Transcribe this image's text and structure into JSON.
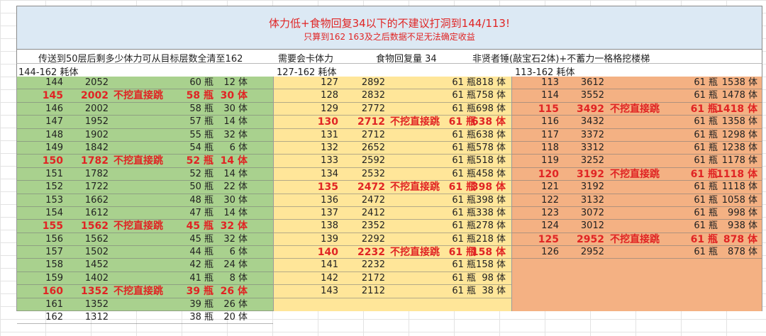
{
  "banner": {
    "title": "体力低+食物回复34以下的不建议打洞到144/113!",
    "subtitle": "只算到162  163及之后数据不足无法确定收益"
  },
  "header": {
    "left": "传送到50层后剩多少体力可从目标层数全清至162",
    "mid1": "需要会卡体力",
    "mid2": "食物回复量 34",
    "right": "非贤者锤(敲宝石2体)+不蓄力一格格挖楼梯"
  },
  "subheader": {
    "green": "144-162   耗体",
    "yellow": "127-162   耗体",
    "orange": "113-162   耗体"
  },
  "tables": {
    "green": [
      {
        "floor": "144",
        "stamina": "2052",
        "note": "",
        "bottles": "60 瓶",
        "cost": "12 体",
        "hl": false
      },
      {
        "floor": "145",
        "stamina": "2002",
        "note": "不挖直接跳",
        "bottles": "58 瓶",
        "cost": "30 体",
        "hl": true
      },
      {
        "floor": "146",
        "stamina": "2002",
        "note": "",
        "bottles": "58 瓶",
        "cost": "30 体",
        "hl": false
      },
      {
        "floor": "147",
        "stamina": "1952",
        "note": "",
        "bottles": "57 瓶",
        "cost": "14 体",
        "hl": false
      },
      {
        "floor": "148",
        "stamina": "1902",
        "note": "",
        "bottles": "55 瓶",
        "cost": "32 体",
        "hl": false
      },
      {
        "floor": "149",
        "stamina": "1842",
        "note": "",
        "bottles": "54 瓶",
        "cost": "6 体",
        "hl": false
      },
      {
        "floor": "150",
        "stamina": "1782",
        "note": "不挖直接跳",
        "bottles": "52 瓶",
        "cost": "14 体",
        "hl": true
      },
      {
        "floor": "151",
        "stamina": "1782",
        "note": "",
        "bottles": "52 瓶",
        "cost": "14 体",
        "hl": false
      },
      {
        "floor": "152",
        "stamina": "1722",
        "note": "",
        "bottles": "50 瓶",
        "cost": "22 体",
        "hl": false
      },
      {
        "floor": "153",
        "stamina": "1662",
        "note": "",
        "bottles": "48 瓶",
        "cost": "30 体",
        "hl": false
      },
      {
        "floor": "154",
        "stamina": "1612",
        "note": "",
        "bottles": "47 瓶",
        "cost": "14 体",
        "hl": false
      },
      {
        "floor": "155",
        "stamina": "1562",
        "note": "不挖直接跳",
        "bottles": "45 瓶",
        "cost": "32 体",
        "hl": true
      },
      {
        "floor": "156",
        "stamina": "1562",
        "note": "",
        "bottles": "45 瓶",
        "cost": "32 体",
        "hl": false
      },
      {
        "floor": "157",
        "stamina": "1502",
        "note": "",
        "bottles": "44 瓶",
        "cost": "6 体",
        "hl": false
      },
      {
        "floor": "158",
        "stamina": "1452",
        "note": "",
        "bottles": "42 瓶",
        "cost": "24 体",
        "hl": false
      },
      {
        "floor": "159",
        "stamina": "1402",
        "note": "",
        "bottles": "41 瓶",
        "cost": "8 体",
        "hl": false
      },
      {
        "floor": "160",
        "stamina": "1352",
        "note": "不挖直接跳",
        "bottles": "39 瓶",
        "cost": "26 体",
        "hl": true
      },
      {
        "floor": "161",
        "stamina": "1352",
        "note": "",
        "bottles": "39 瓶",
        "cost": "26 体",
        "hl": false
      },
      {
        "floor": "162",
        "stamina": "1312",
        "note": "",
        "bottles": "38 瓶",
        "cost": "20 体",
        "hl": false
      }
    ],
    "yellow": [
      {
        "floor": "127",
        "stamina": "2892",
        "note": "",
        "bottles": "61 瓶",
        "cost": "818 体",
        "hl": false
      },
      {
        "floor": "128",
        "stamina": "2832",
        "note": "",
        "bottles": "61 瓶",
        "cost": "758 体",
        "hl": false
      },
      {
        "floor": "129",
        "stamina": "2772",
        "note": "",
        "bottles": "61 瓶",
        "cost": "698 体",
        "hl": false
      },
      {
        "floor": "130",
        "stamina": "2712",
        "note": "不挖直接跳",
        "bottles": "61 瓶",
        "cost": "638 体",
        "hl": true
      },
      {
        "floor": "131",
        "stamina": "2712",
        "note": "",
        "bottles": "61 瓶",
        "cost": "638 体",
        "hl": false
      },
      {
        "floor": "132",
        "stamina": "2652",
        "note": "",
        "bottles": "61 瓶",
        "cost": "578 体",
        "hl": false
      },
      {
        "floor": "133",
        "stamina": "2592",
        "note": "",
        "bottles": "61 瓶",
        "cost": "518 体",
        "hl": false
      },
      {
        "floor": "134",
        "stamina": "2532",
        "note": "",
        "bottles": "61 瓶",
        "cost": "458 体",
        "hl": false
      },
      {
        "floor": "135",
        "stamina": "2472",
        "note": "不挖直接跳",
        "bottles": "61 瓶",
        "cost": "398 体",
        "hl": true
      },
      {
        "floor": "136",
        "stamina": "2472",
        "note": "",
        "bottles": "61 瓶",
        "cost": "398 体",
        "hl": false
      },
      {
        "floor": "137",
        "stamina": "2412",
        "note": "",
        "bottles": "61 瓶",
        "cost": "338 体",
        "hl": false
      },
      {
        "floor": "138",
        "stamina": "2352",
        "note": "",
        "bottles": "61 瓶",
        "cost": "278 体",
        "hl": false
      },
      {
        "floor": "139",
        "stamina": "2292",
        "note": "",
        "bottles": "61 瓶",
        "cost": "218 体",
        "hl": false
      },
      {
        "floor": "140",
        "stamina": "2232",
        "note": "不挖直接跳",
        "bottles": "61 瓶",
        "cost": "158 体",
        "hl": true
      },
      {
        "floor": "141",
        "stamina": "2232",
        "note": "",
        "bottles": "61 瓶",
        "cost": "158 体",
        "hl": false
      },
      {
        "floor": "142",
        "stamina": "2172",
        "note": "",
        "bottles": "61 瓶",
        "cost": "98 体",
        "hl": false
      },
      {
        "floor": "143",
        "stamina": "2112",
        "note": "",
        "bottles": "61 瓶",
        "cost": "38 体",
        "hl": false
      }
    ],
    "orange": [
      {
        "floor": "113",
        "stamina": "3612",
        "note": "",
        "bottles": "61 瓶",
        "cost": "1538 体",
        "hl": false
      },
      {
        "floor": "114",
        "stamina": "3552",
        "note": "",
        "bottles": "61 瓶",
        "cost": "1478 体",
        "hl": false
      },
      {
        "floor": "115",
        "stamina": "3492",
        "note": "不挖直接跳",
        "bottles": "61 瓶",
        "cost": "1418 体",
        "hl": true
      },
      {
        "floor": "116",
        "stamina": "3432",
        "note": "",
        "bottles": "61 瓶",
        "cost": "1358 体",
        "hl": false
      },
      {
        "floor": "117",
        "stamina": "3372",
        "note": "",
        "bottles": "61 瓶",
        "cost": "1298 体",
        "hl": false
      },
      {
        "floor": "118",
        "stamina": "3312",
        "note": "",
        "bottles": "61 瓶",
        "cost": "1238 体",
        "hl": false
      },
      {
        "floor": "119",
        "stamina": "3252",
        "note": "",
        "bottles": "61 瓶",
        "cost": "1178 体",
        "hl": false
      },
      {
        "floor": "120",
        "stamina": "3192",
        "note": "不挖直接跳",
        "bottles": "61 瓶",
        "cost": "1118 体",
        "hl": true
      },
      {
        "floor": "121",
        "stamina": "3192",
        "note": "",
        "bottles": "61 瓶",
        "cost": "1118 体",
        "hl": false
      },
      {
        "floor": "122",
        "stamina": "3132",
        "note": "",
        "bottles": "61 瓶",
        "cost": "1058 体",
        "hl": false
      },
      {
        "floor": "123",
        "stamina": "3072",
        "note": "",
        "bottles": "61 瓶",
        "cost": "998 体",
        "hl": false
      },
      {
        "floor": "124",
        "stamina": "3012",
        "note": "",
        "bottles": "61 瓶",
        "cost": "938 体",
        "hl": false
      },
      {
        "floor": "125",
        "stamina": "2952",
        "note": "不挖直接跳",
        "bottles": "61 瓶",
        "cost": "878 体",
        "hl": true
      },
      {
        "floor": "126",
        "stamina": "2952",
        "note": "",
        "bottles": "61 瓶",
        "cost": "878 体",
        "hl": false
      }
    ]
  }
}
